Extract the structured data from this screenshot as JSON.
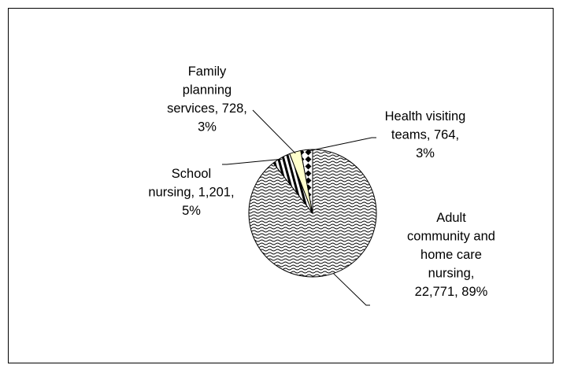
{
  "chart_data": {
    "type": "pie",
    "title": "",
    "legend": "none",
    "slices": [
      {
        "category": "Adult community and home care nursing",
        "value": 22771,
        "percent": "89%",
        "pattern": "wave",
        "label_lines": [
          "Adult",
          "community and",
          "home care",
          "nursing,",
          "22,771, 89%"
        ]
      },
      {
        "category": "School nursing",
        "value": 1201,
        "percent": "5%",
        "pattern": "vertical-stripes",
        "label_lines": [
          "School",
          "nursing, 1,201,",
          "5%"
        ]
      },
      {
        "category": "Family planning services",
        "value": 728,
        "percent": "3%",
        "pattern": "solid",
        "color": "#ffffcc",
        "label_lines": [
          "Family",
          "planning",
          "services, 728,",
          "3%"
        ]
      },
      {
        "category": "Health visiting teams",
        "value": 764,
        "percent": "3%",
        "pattern": "diamonds",
        "label_lines": [
          "Health visiting",
          "teams, 764,",
          "3%"
        ]
      }
    ]
  }
}
